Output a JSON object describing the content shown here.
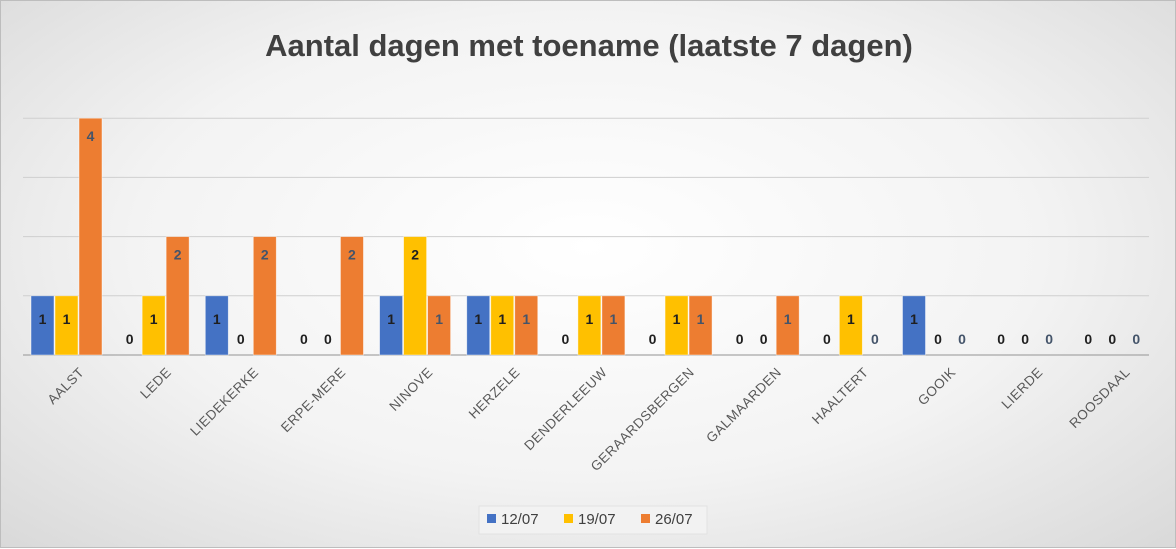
{
  "chart_data": {
    "type": "bar",
    "title": "Aantal dagen met toename (laatste 7 dagen)",
    "xlabel": "",
    "ylabel": "",
    "ylim": [
      0,
      8
    ],
    "gridlines": true,
    "legend_position": "bottom",
    "categories": [
      "AALST",
      "LEDE",
      "LIEDEKERKE",
      "ERPE-MERE",
      "NINOVE",
      "HERZELE",
      "DENDERLEEUW",
      "GERAARDSBERGEN",
      "GALMAARDEN",
      "HAALTERT",
      "GOOIK",
      "LIERDE",
      "ROOSDAAL"
    ],
    "series": [
      {
        "name": "12/07",
        "color": "#4472c4",
        "label_color": "#1f1f1f",
        "values": [
          1,
          0,
          1,
          0,
          1,
          1,
          0,
          0,
          0,
          0,
          1,
          0,
          0
        ]
      },
      {
        "name": "19/07",
        "color": "#ffc000",
        "label_color": "#1f1f1f",
        "values": [
          1,
          1,
          0,
          0,
          2,
          1,
          1,
          1,
          0,
          1,
          0,
          0,
          0
        ]
      },
      {
        "name": "26/07",
        "color": "#ed7d31",
        "label_color": "#44546a",
        "values": [
          4,
          2,
          2,
          2,
          1,
          1,
          1,
          1,
          1,
          0,
          0,
          0,
          0
        ]
      }
    ]
  }
}
